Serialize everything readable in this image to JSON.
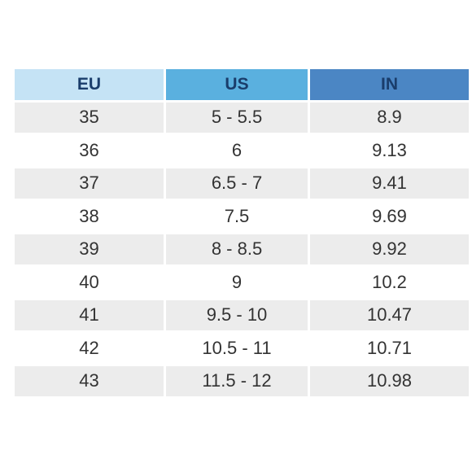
{
  "header": {
    "columns": [
      {
        "label": "EU",
        "color": "#c5e3f5"
      },
      {
        "label": "US",
        "color": "#5ab0df"
      },
      {
        "label": "IN",
        "color": "#4b86c4"
      }
    ]
  },
  "rows": [
    {
      "eu": "35",
      "us": "5 - 5.5",
      "in": "8.9"
    },
    {
      "eu": "36",
      "us": "6",
      "in": "9.13"
    },
    {
      "eu": "37",
      "us": "6.5 - 7",
      "in": "9.41"
    },
    {
      "eu": "38",
      "us": "7.5",
      "in": "9.69"
    },
    {
      "eu": "39",
      "us": "8 - 8.5",
      "in": "9.92"
    },
    {
      "eu": "40",
      "us": "9",
      "in": "10.2"
    },
    {
      "eu": "41",
      "us": "9.5 - 10",
      "in": "10.47"
    },
    {
      "eu": "42",
      "us": "10.5 - 11",
      "in": "10.71"
    },
    {
      "eu": "43",
      "us": "11.5 - 12",
      "in": "10.98"
    }
  ],
  "colors": {
    "header_text": "#1a3d6b",
    "shaded_row": "#ececec",
    "plain_row": "#ffffff",
    "cell_text": "#333333"
  }
}
